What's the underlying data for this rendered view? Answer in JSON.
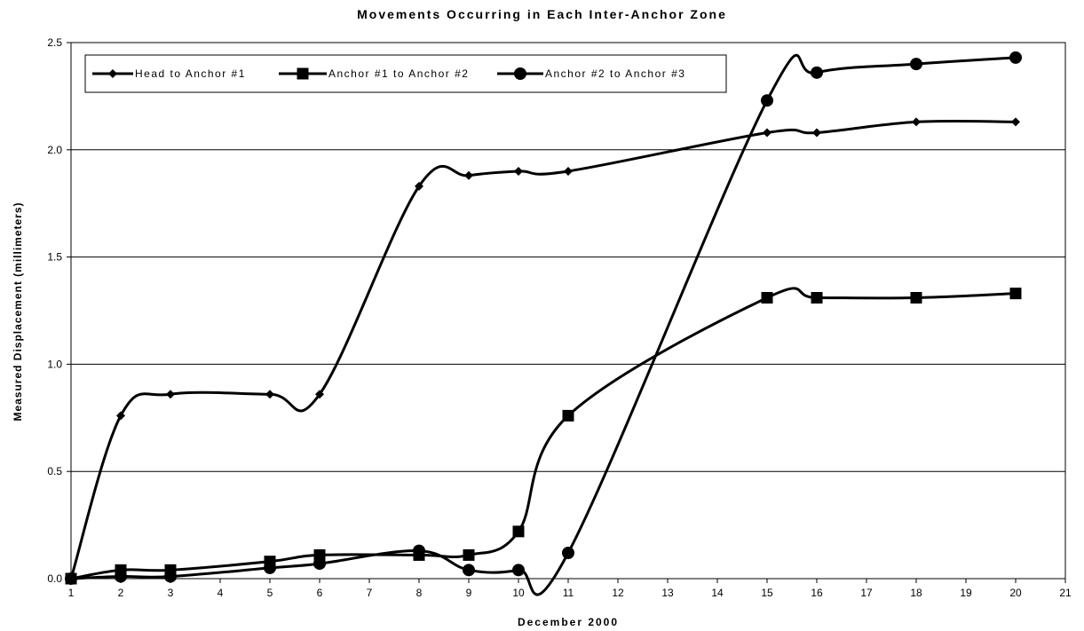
{
  "chart_data": {
    "type": "line",
    "title": "Movements Occurring in Each Inter-Anchor Zone",
    "xlabel": "December 2000",
    "ylabel": "Measured Displacement (millimeters)",
    "xlim": [
      1,
      21
    ],
    "ylim": [
      0,
      2.5
    ],
    "xticks": [
      "1",
      "2",
      "3",
      "4",
      "5",
      "6",
      "7",
      "8",
      "9",
      "10",
      "11",
      "12",
      "13",
      "14",
      "15",
      "16",
      "17",
      "18",
      "19",
      "20",
      "21"
    ],
    "yticks": [
      "0.0",
      "0.5",
      "1.0",
      "1.5",
      "2.0",
      "2.5"
    ],
    "grid": "horizontal",
    "legend_position": "top-left",
    "series": [
      {
        "name": "Head to Anchor #1",
        "marker": "diamond",
        "x": [
          1,
          2,
          3,
          5,
          6,
          8,
          9,
          10,
          11,
          15,
          16,
          18,
          20
        ],
        "y": [
          0.0,
          0.76,
          0.86,
          0.86,
          0.86,
          1.83,
          1.88,
          1.9,
          1.9,
          2.08,
          2.08,
          2.13,
          2.13
        ]
      },
      {
        "name": "Anchor #1 to Anchor #2",
        "marker": "square",
        "x": [
          1,
          2,
          3,
          5,
          6,
          8,
          9,
          10,
          11,
          15,
          16,
          18,
          20
        ],
        "y": [
          0.0,
          0.04,
          0.04,
          0.08,
          0.11,
          0.11,
          0.11,
          0.22,
          0.76,
          1.31,
          1.31,
          1.31,
          1.33
        ]
      },
      {
        "name": "Anchor #2 to Anchor #3",
        "marker": "circle",
        "x": [
          1,
          2,
          3,
          5,
          6,
          8,
          9,
          10,
          11,
          15,
          16,
          18,
          20
        ],
        "y": [
          0.0,
          0.01,
          0.01,
          0.05,
          0.07,
          0.13,
          0.04,
          0.04,
          0.12,
          2.23,
          2.36,
          2.4,
          2.43
        ]
      }
    ]
  }
}
